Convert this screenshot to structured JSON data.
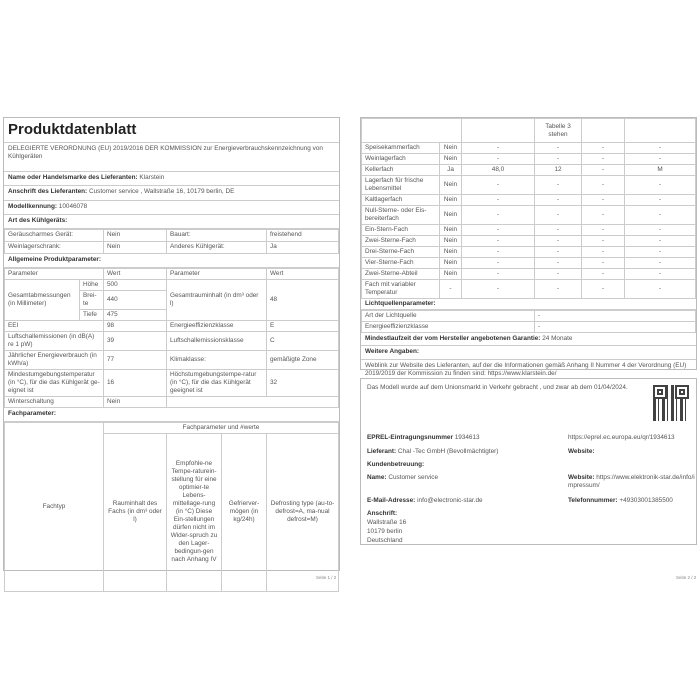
{
  "page1": {
    "title": "Produktdatenblatt",
    "regulation": "DELEGIERTE VERORDNUNG (EU) 2019/2016 DER KOMMISSION zur Energieverbrauchskennzeichnung von Kühlgeräten",
    "supplier_name_label": "Name oder Handelsmarke des Lieferanten:",
    "supplier_name": "Klarstein",
    "supplier_address_label": "Anschrift des Lieferanten:",
    "supplier_address": "Customer service , Wallstraße 16, 10179 berlin, DE",
    "model_label": "Modellkennung:",
    "model": "10046078",
    "type_heading": "Art des Kühlgeräts:",
    "type_rows": [
      [
        "Geräuscharmes Gerät:",
        "Nein",
        "Bauart:",
        "freistehend"
      ],
      [
        "Weinlagerschrank:",
        "Nein",
        "Anderes Kühlgerät:",
        "Ja"
      ]
    ],
    "general_heading": "Allgemeine Produktparameter:",
    "col_param": "Parameter",
    "col_value": "Wert",
    "dimensions_label": "Gesamtabmessungen (in Millimeter)",
    "dims": [
      [
        "Höhe",
        "500"
      ],
      [
        "Brei-te",
        "440"
      ],
      [
        "Tiefe",
        "475"
      ]
    ],
    "volume_label": "Gesamtrauminhalt (in dm³ oder l)",
    "volume": "48",
    "rows": [
      [
        "EEI",
        "98",
        "Energieeffizienzklasse",
        "E"
      ],
      [
        "Luftschallemissionen (in dB(A) re 1 pW)",
        "39",
        "Luftschallemissionsklasse",
        "C"
      ],
      [
        "Jährlicher Energieverbrauch (in kWh/a)",
        "77",
        "Klimaklasse:",
        "gemäßigte Zone"
      ],
      [
        "Mindestumgebungstemperatur (in °C), für die das Kühlgerät ge-eignet ist",
        "16",
        "Höchstumgebungstempe-ratur (in °C), für die das Kühlgerät geeignet ist",
        "32"
      ]
    ],
    "winter_label": "Winterschaltung",
    "winter": "Nein",
    "comp_heading": "Fachparameter:",
    "comp_group": "Fachparameter und #werte",
    "comp_cols": [
      "Fachtyp",
      "Rauminhalt des Fachs (in dm³ oder l)",
      "Empfohle-ne Tempe-raturein-stellung für eine optimier-te Lebens-mittellage-rung (in °C) Diese Ein-stellungen dürfen nicht im Wider-spruch zu den Lager-bedingun-gen nach Anhang IV",
      "Gefrierver-mögen (in kg/24h)",
      "Defrosting type (au-to-defrost=A, ma-nual defrost=M)"
    ],
    "footer": "Seite 1 / 2"
  },
  "page2": {
    "top_cell": "Tabelle 3 stehen",
    "compartments": [
      [
        "Speisekammerfach",
        "Nein",
        "-",
        "-",
        "-",
        "-"
      ],
      [
        "Weinlagerfach",
        "Nein",
        "-",
        "-",
        "-",
        "-"
      ],
      [
        "Kellerfach",
        "Ja",
        "48,0",
        "12",
        "-",
        "M"
      ],
      [
        "Lagerfach für frische Lebensmittel",
        "Nein",
        "-",
        "-",
        "-",
        "-"
      ],
      [
        "Kaltlagerfach",
        "Nein",
        "-",
        "-",
        "-",
        "-"
      ],
      [
        "Null-Sterne- oder Eis-bereiterfach",
        "Nein",
        "-",
        "-",
        "-",
        "-"
      ],
      [
        "Ein-Stern-Fach",
        "Nein",
        "-",
        "-",
        "-",
        "-"
      ],
      [
        "Zwei-Sterne-Fach",
        "Nein",
        "-",
        "-",
        "-",
        "-"
      ],
      [
        "Drei-Sterne-Fach",
        "Nein",
        "-",
        "-",
        "-",
        "-"
      ],
      [
        "Vier-Sterne-Fach",
        "Nein",
        "-",
        "-",
        "-",
        "-"
      ],
      [
        "Zwei-Sterne-Abteil",
        "Nein",
        "-",
        "-",
        "-",
        "-"
      ],
      [
        "Fach mit variabler Temperatur",
        "-",
        "-",
        "-",
        "-",
        "-"
      ]
    ],
    "light_heading": "Lichtquellenparameter:",
    "light_rows": [
      [
        "Art der Lichtquelle",
        "-"
      ],
      [
        "Energieeffizienzklasse",
        "-"
      ]
    ],
    "warranty_label": "Mindestlaufzeit der vom Hersteller angebotenen Garantie:",
    "warranty": "24 Monate",
    "more_heading": "Weitere Angaben:",
    "weblink_text": "Weblink zur Website des Lieferanten, auf der die Informationen gemäß Anhang II Nummer 4 der Verordnung (EU) 2019/2019 der Kommission zu finden sind:",
    "weblink": "https://www.klarstein.de/",
    "market_text": "Das Modell wurde auf dem Unionsmarkt in Verkehr gebracht , und zwar ab dem 01/04/2024.",
    "eprel_label": "EPREL-Eintragungsnummer",
    "eprel": "1934613",
    "eprel_url": "https://eprel.ec.europa.eu/qr/1934613",
    "supplier_label": "Lieferant:",
    "supplier": "Chal -Tec GmbH (Bevollmächtigter)",
    "website_label": "Website:",
    "support_label": "Kundenbetreuung:",
    "name_label": "Name:",
    "name": "Customer service",
    "website2_label": "Website:",
    "website2": "https://www.elektronik-star.de/info/impressum/",
    "email_label": "E-Mail-Adresse:",
    "email": "info@electronic-star.de",
    "phone_label": "Telefonnummer:",
    "phone": "+49303001385500",
    "address_label": "Anschrift:",
    "address": [
      "Wallstraße 16",
      "10179 berlin",
      "Deutschland"
    ],
    "footer": "Seite 2 / 2"
  }
}
